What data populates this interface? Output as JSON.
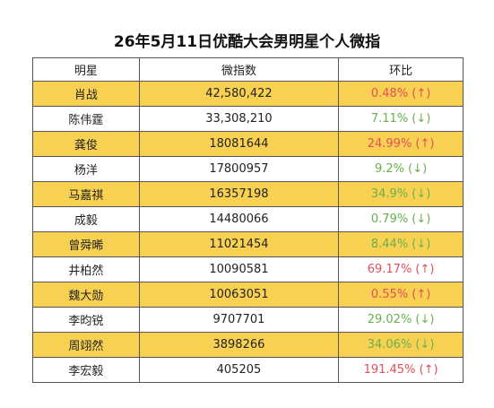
{
  "header": {
    "title": "26年5月11日优酷大会男明星个人微指"
  },
  "table": {
    "columns": [
      "明星",
      "微指数",
      "环比"
    ],
    "rows": [
      [
        "肖战",
        "42,580,422",
        "0.48% (↑)"
      ],
      [
        "陈伟霆",
        "33,308,210",
        "7.11% (↓)"
      ],
      [
        "龚俊",
        "18081644",
        "24.99% (↑)"
      ],
      [
        "杨洋",
        "17800957",
        "9.2% (↓)"
      ],
      [
        "马嘉祺",
        "16357198",
        "34.9% (↓)"
      ],
      [
        "成毅",
        "14480066",
        "0.79% (↓)"
      ],
      [
        "曾舜晞",
        "11021454",
        "8.44% (↓)"
      ],
      [
        "井柏然",
        "10090581",
        "69.17% (↑)"
      ],
      [
        "魏大勋",
        "10063051",
        "0.55% (↑)"
      ],
      [
        "李昀锐",
        "9707701",
        "29.02% (↓)"
      ],
      [
        "周翊然",
        "3898266",
        "34.06% (↓)"
      ],
      [
        "李宏毅",
        "405205",
        "191.45% (↑)"
      ]
    ]
  }
}
